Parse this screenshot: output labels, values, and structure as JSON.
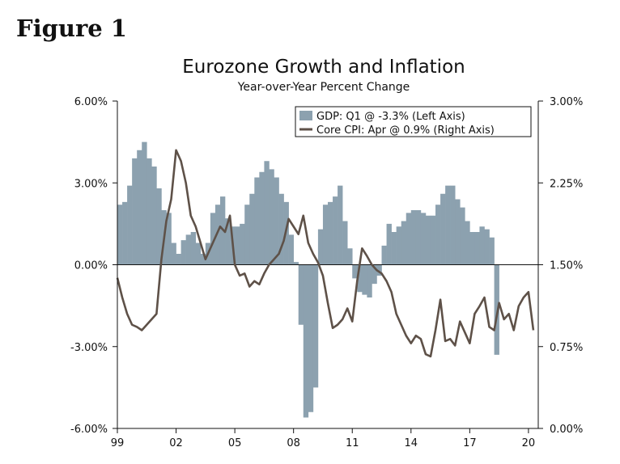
{
  "figure_label": "Figure 1",
  "chart_data": {
    "type": "bar+line",
    "title": "Eurozone Growth and Inflation",
    "subtitle": "Year-over-Year Percent Change",
    "x_range": [
      1999,
      2020.5
    ],
    "x_ticks": [
      1999,
      2002,
      2005,
      2008,
      2011,
      2014,
      2017,
      2020
    ],
    "x_tick_labels": [
      "99",
      "02",
      "05",
      "08",
      "11",
      "14",
      "17",
      "20"
    ],
    "left_axis": {
      "range": [
        -6,
        6
      ],
      "ticks": [
        6,
        3,
        0,
        -3,
        -6
      ],
      "tick_labels": [
        "6.00%",
        "3.00%",
        "0.00%",
        "-3.00%",
        "-6.00%"
      ]
    },
    "right_axis": {
      "range": [
        0,
        3
      ],
      "ticks": [
        3,
        2.25,
        1.5,
        0.75,
        0
      ],
      "tick_labels": [
        "3.00%",
        "2.25%",
        "1.50%",
        "0.75%",
        "0.00%"
      ]
    },
    "legend": [
      {
        "label": "GDP: Q1 @ -3.3% (Left Axis)",
        "kind": "bar",
        "color": "#8CA1AF"
      },
      {
        "label": "Core CPI: Apr @ 0.9% (Right Axis)",
        "kind": "line",
        "color": "#5E5148"
      }
    ],
    "series": [
      {
        "name": "GDP",
        "axis": "left",
        "type": "bar",
        "color": "#8CA1AF",
        "start": 1999.0,
        "step": 0.25,
        "values": [
          2.2,
          2.3,
          2.9,
          3.9,
          4.2,
          4.5,
          3.9,
          3.6,
          2.8,
          2.0,
          1.9,
          0.8,
          0.4,
          0.9,
          1.1,
          1.2,
          0.8,
          0.4,
          0.8,
          1.9,
          2.2,
          2.5,
          1.7,
          1.4,
          1.4,
          1.5,
          2.2,
          2.6,
          3.2,
          3.4,
          3.8,
          3.5,
          3.2,
          2.6,
          2.3,
          1.1,
          0.1,
          -2.2,
          -5.6,
          -5.4,
          -4.5,
          1.3,
          2.2,
          2.3,
          2.5,
          2.9,
          1.6,
          0.6,
          -0.5,
          -1.0,
          -1.1,
          -1.2,
          -0.7,
          -0.4,
          0.7,
          1.5,
          1.2,
          1.4,
          1.6,
          1.9,
          2.0,
          2.0,
          1.9,
          1.8,
          1.8,
          2.2,
          2.6,
          2.9,
          2.9,
          2.4,
          2.1,
          1.6,
          1.2,
          1.2,
          1.4,
          1.3,
          1.0,
          -3.3
        ]
      },
      {
        "name": "Core CPI",
        "axis": "right",
        "type": "line",
        "color": "#5E5148",
        "x": [
          1999.0,
          1999.25,
          1999.5,
          1999.75,
          2000.0,
          2000.25,
          2000.5,
          2000.75,
          2001.0,
          2001.25,
          2001.5,
          2001.75,
          2002.0,
          2002.25,
          2002.5,
          2002.75,
          2003.0,
          2003.25,
          2003.5,
          2003.75,
          2004.0,
          2004.25,
          2004.5,
          2004.75,
          2005.0,
          2005.25,
          2005.5,
          2005.75,
          2006.0,
          2006.25,
          2006.5,
          2006.75,
          2007.0,
          2007.25,
          2007.5,
          2007.75,
          2008.0,
          2008.25,
          2008.5,
          2008.75,
          2009.0,
          2009.25,
          2009.5,
          2009.75,
          2010.0,
          2010.25,
          2010.5,
          2010.75,
          2011.0,
          2011.25,
          2011.5,
          2011.75,
          2012.0,
          2012.25,
          2012.5,
          2012.75,
          2013.0,
          2013.25,
          2013.5,
          2013.75,
          2014.0,
          2014.25,
          2014.5,
          2014.75,
          2015.0,
          2015.25,
          2015.5,
          2015.75,
          2016.0,
          2016.25,
          2016.5,
          2016.75,
          2017.0,
          2017.25,
          2017.5,
          2017.75,
          2018.0,
          2018.25,
          2018.5,
          2018.75,
          2019.0,
          2019.25,
          2019.5,
          2019.75,
          2020.0,
          2020.25
        ],
        "values": [
          1.38,
          1.2,
          1.05,
          0.95,
          0.93,
          0.9,
          0.95,
          1.0,
          1.05,
          1.55,
          1.9,
          2.1,
          2.55,
          2.45,
          2.25,
          1.95,
          1.85,
          1.7,
          1.55,
          1.65,
          1.75,
          1.85,
          1.8,
          1.95,
          1.5,
          1.4,
          1.42,
          1.3,
          1.35,
          1.32,
          1.42,
          1.5,
          1.55,
          1.6,
          1.72,
          1.92,
          1.85,
          1.78,
          1.95,
          1.7,
          1.6,
          1.52,
          1.4,
          1.15,
          0.92,
          0.95,
          1.0,
          1.1,
          0.98,
          1.35,
          1.65,
          1.58,
          1.5,
          1.45,
          1.42,
          1.35,
          1.25,
          1.05,
          0.95,
          0.85,
          0.78,
          0.85,
          0.82,
          0.68,
          0.66,
          0.9,
          1.18,
          0.8,
          0.82,
          0.76,
          0.98,
          0.88,
          0.78,
          1.05,
          1.12,
          1.2,
          0.93,
          0.9,
          1.15,
          1.0,
          1.05,
          0.9,
          1.12,
          1.2,
          1.25,
          0.9
        ]
      }
    ]
  }
}
